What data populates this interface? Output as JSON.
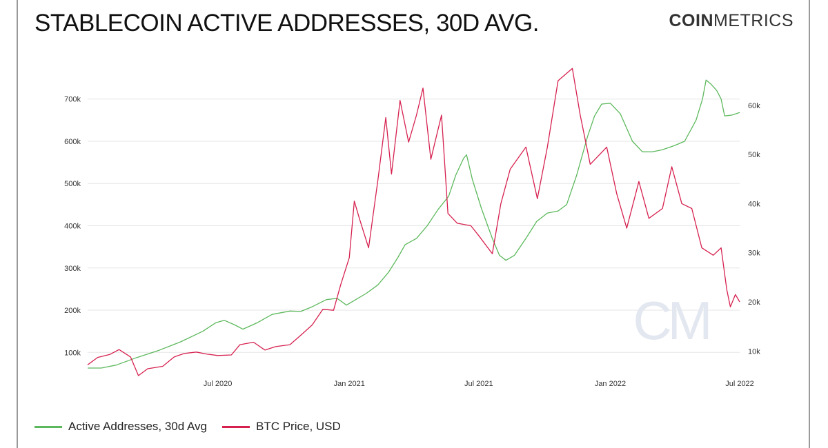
{
  "header": {
    "title": "STABLECOIN ACTIVE ADDRESSES, 30D AVG.",
    "logo_bold": "COIN",
    "logo_light": "METRICS"
  },
  "watermark": "CM",
  "colors": {
    "active_addresses": "#5cb85c",
    "btc_price": "#d6204e",
    "grid": "#e6e6e6"
  },
  "chart_data": {
    "type": "line",
    "title": "STABLECOIN ACTIVE ADDRESSES, 30D AVG.",
    "x_ticks": [
      "Jul 2020",
      "Jan 2021",
      "Jul 2021",
      "Jan 2022",
      "Jul 2022"
    ],
    "x_range": [
      "2020-01-01",
      "2022-07-01"
    ],
    "y_left": {
      "ticks": [
        "100k",
        "200k",
        "300k",
        "400k",
        "500k",
        "600k",
        "700k"
      ],
      "range": [
        45000,
        755000
      ]
    },
    "y_right": {
      "ticks": [
        "10k",
        "20k",
        "30k",
        "40k",
        "50k",
        "60k"
      ],
      "range": [
        5000,
        66000
      ]
    },
    "grid": true,
    "legend_position": "bottom-left",
    "series": [
      {
        "name": "Active Addresses, 30d Avg",
        "axis": "left",
        "points": [
          [
            "2020-01-01",
            63000
          ],
          [
            "2020-01-20",
            63000
          ],
          [
            "2020-02-10",
            70000
          ],
          [
            "2020-03-10",
            88000
          ],
          [
            "2020-04-10",
            105000
          ],
          [
            "2020-05-10",
            125000
          ],
          [
            "2020-06-10",
            150000
          ],
          [
            "2020-06-28",
            170000
          ],
          [
            "2020-07-10",
            176000
          ],
          [
            "2020-07-25",
            165000
          ],
          [
            "2020-08-05",
            155000
          ],
          [
            "2020-08-25",
            170000
          ],
          [
            "2020-09-15",
            190000
          ],
          [
            "2020-10-10",
            198000
          ],
          [
            "2020-10-25",
            197000
          ],
          [
            "2020-11-10",
            208000
          ],
          [
            "2020-11-30",
            225000
          ],
          [
            "2020-12-15",
            228000
          ],
          [
            "2020-12-28",
            212000
          ],
          [
            "2021-01-10",
            225000
          ],
          [
            "2021-01-25",
            240000
          ],
          [
            "2021-02-10",
            260000
          ],
          [
            "2021-02-25",
            290000
          ],
          [
            "2021-03-10",
            325000
          ],
          [
            "2021-03-20",
            355000
          ],
          [
            "2021-04-05",
            370000
          ],
          [
            "2021-04-20",
            400000
          ],
          [
            "2021-05-05",
            438000
          ],
          [
            "2021-05-20",
            470000
          ],
          [
            "2021-05-30",
            520000
          ],
          [
            "2021-06-10",
            560000
          ],
          [
            "2021-06-14",
            568000
          ],
          [
            "2021-06-22",
            510000
          ],
          [
            "2021-07-05",
            440000
          ],
          [
            "2021-07-20",
            370000
          ],
          [
            "2021-07-30",
            330000
          ],
          [
            "2021-08-08",
            318000
          ],
          [
            "2021-08-20",
            330000
          ],
          [
            "2021-09-05",
            370000
          ],
          [
            "2021-09-20",
            410000
          ],
          [
            "2021-10-05",
            430000
          ],
          [
            "2021-10-20",
            435000
          ],
          [
            "2021-11-01",
            450000
          ],
          [
            "2021-11-15",
            520000
          ],
          [
            "2021-11-30",
            610000
          ],
          [
            "2021-12-10",
            660000
          ],
          [
            "2021-12-20",
            688000
          ],
          [
            "2022-01-01",
            690000
          ],
          [
            "2022-01-15",
            665000
          ],
          [
            "2022-02-01",
            600000
          ],
          [
            "2022-02-15",
            575000
          ],
          [
            "2022-03-01",
            575000
          ],
          [
            "2022-03-15",
            580000
          ],
          [
            "2022-04-01",
            590000
          ],
          [
            "2022-04-15",
            600000
          ],
          [
            "2022-05-01",
            650000
          ],
          [
            "2022-05-10",
            700000
          ],
          [
            "2022-05-15",
            745000
          ],
          [
            "2022-05-22",
            735000
          ],
          [
            "2022-05-30",
            720000
          ],
          [
            "2022-06-05",
            700000
          ],
          [
            "2022-06-10",
            660000
          ],
          [
            "2022-06-20",
            662000
          ],
          [
            "2022-07-01",
            668000
          ]
        ]
      },
      {
        "name": "BTC Price, USD",
        "axis": "right",
        "points": [
          [
            "2020-01-01",
            7200
          ],
          [
            "2020-01-15",
            8700
          ],
          [
            "2020-02-01",
            9300
          ],
          [
            "2020-02-14",
            10300
          ],
          [
            "2020-03-01",
            8800
          ],
          [
            "2020-03-12",
            5000
          ],
          [
            "2020-03-25",
            6400
          ],
          [
            "2020-04-15",
            6900
          ],
          [
            "2020-05-01",
            8800
          ],
          [
            "2020-05-15",
            9500
          ],
          [
            "2020-06-01",
            9800
          ],
          [
            "2020-06-15",
            9400
          ],
          [
            "2020-07-01",
            9100
          ],
          [
            "2020-07-20",
            9200
          ],
          [
            "2020-08-01",
            11300
          ],
          [
            "2020-08-20",
            11800
          ],
          [
            "2020-09-05",
            10200
          ],
          [
            "2020-09-20",
            10900
          ],
          [
            "2020-10-10",
            11300
          ],
          [
            "2020-10-25",
            13200
          ],
          [
            "2020-11-10",
            15300
          ],
          [
            "2020-11-25",
            18500
          ],
          [
            "2020-12-10",
            18300
          ],
          [
            "2020-12-20",
            23500
          ],
          [
            "2021-01-01",
            29000
          ],
          [
            "2021-01-08",
            40500
          ],
          [
            "2021-01-15",
            37000
          ],
          [
            "2021-01-28",
            31000
          ],
          [
            "2021-02-10",
            44800
          ],
          [
            "2021-02-21",
            57500
          ],
          [
            "2021-03-01",
            46000
          ],
          [
            "2021-03-13",
            61000
          ],
          [
            "2021-03-25",
            52500
          ],
          [
            "2021-04-05",
            58000
          ],
          [
            "2021-04-14",
            63500
          ],
          [
            "2021-04-25",
            49000
          ],
          [
            "2021-05-10",
            58000
          ],
          [
            "2021-05-19",
            38000
          ],
          [
            "2021-06-01",
            36000
          ],
          [
            "2021-06-20",
            35500
          ],
          [
            "2021-07-01",
            33500
          ],
          [
            "2021-07-20",
            29800
          ],
          [
            "2021-08-01",
            40000
          ],
          [
            "2021-08-14",
            47000
          ],
          [
            "2021-09-05",
            51500
          ],
          [
            "2021-09-21",
            41000
          ],
          [
            "2021-10-05",
            51500
          ],
          [
            "2021-10-20",
            65000
          ],
          [
            "2021-11-09",
            67500
          ],
          [
            "2021-11-20",
            58000
          ],
          [
            "2021-12-04",
            48000
          ],
          [
            "2021-12-27",
            51500
          ],
          [
            "2022-01-10",
            42000
          ],
          [
            "2022-01-24",
            35000
          ],
          [
            "2022-02-10",
            44500
          ],
          [
            "2022-02-24",
            37000
          ],
          [
            "2022-03-15",
            39000
          ],
          [
            "2022-03-28",
            47500
          ],
          [
            "2022-04-11",
            40000
          ],
          [
            "2022-04-25",
            39000
          ],
          [
            "2022-05-09",
            31000
          ],
          [
            "2022-05-25",
            29500
          ],
          [
            "2022-06-05",
            31000
          ],
          [
            "2022-06-13",
            22500
          ],
          [
            "2022-06-18",
            19000
          ],
          [
            "2022-06-25",
            21500
          ],
          [
            "2022-07-01",
            20000
          ]
        ]
      }
    ]
  }
}
